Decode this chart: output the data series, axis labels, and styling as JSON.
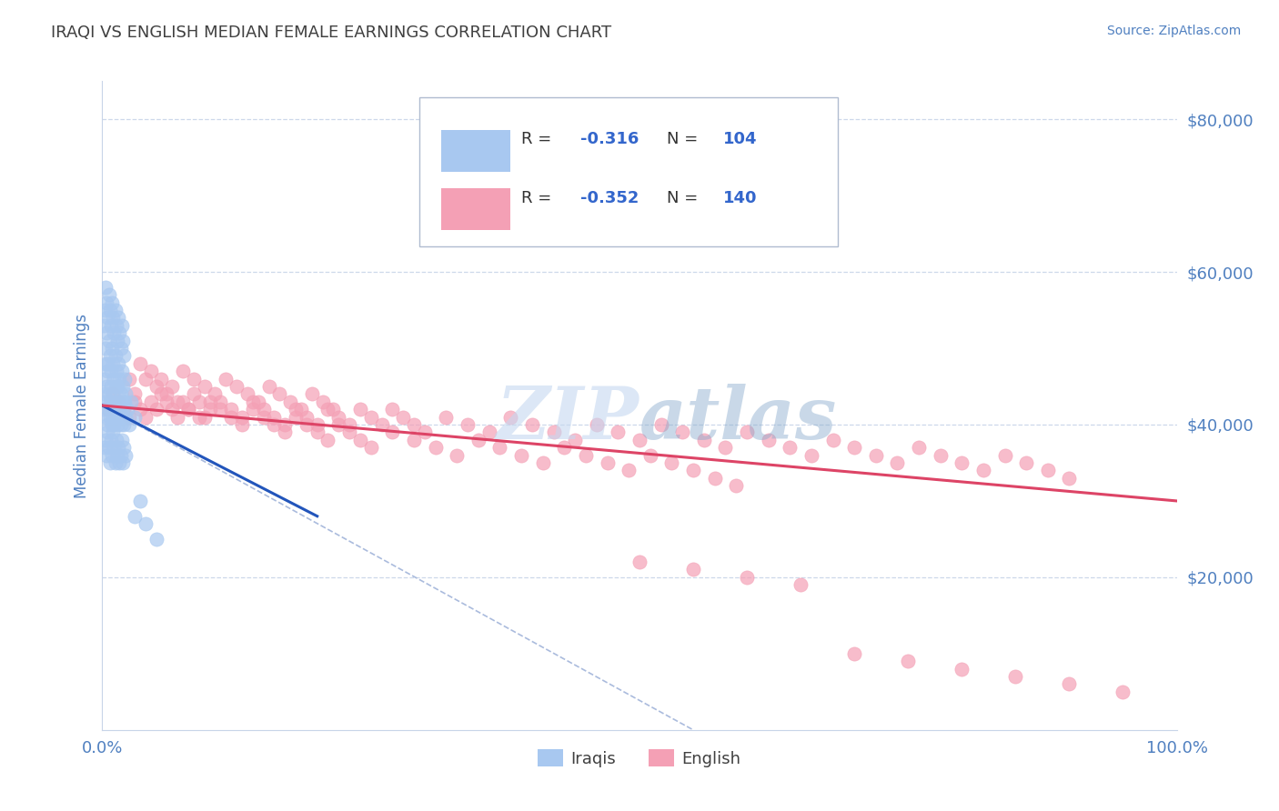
{
  "title": "IRAQI VS ENGLISH MEDIAN FEMALE EARNINGS CORRELATION CHART",
  "source": "Source: ZipAtlas.com",
  "ylabel": "Median Female Earnings",
  "xlim": [
    0,
    1.0
  ],
  "ylim": [
    0,
    85000
  ],
  "yticks": [
    20000,
    40000,
    60000,
    80000
  ],
  "ytick_labels": [
    "$20,000",
    "$40,000",
    "$60,000",
    "$80,000"
  ],
  "xtick_labels": [
    "0.0%",
    "100.0%"
  ],
  "legend_r_iraqi": "-0.316",
  "legend_n_iraqi": "104",
  "legend_r_english": "-0.352",
  "legend_n_english": "140",
  "iraqi_color": "#a8c8f0",
  "english_color": "#f4a0b5",
  "iraqi_line_color": "#2255bb",
  "english_line_color": "#dd4466",
  "diagonal_color": "#aabbdd",
  "watermark_color": "#c5d8f0",
  "background_color": "#ffffff",
  "grid_color": "#c8d4e8",
  "title_color": "#404040",
  "axis_label_color": "#5080c0",
  "label_blue": "#3366cc",
  "iraqi_scatter_x": [
    0.001,
    0.002,
    0.002,
    0.003,
    0.003,
    0.004,
    0.004,
    0.005,
    0.005,
    0.006,
    0.006,
    0.007,
    0.007,
    0.008,
    0.008,
    0.009,
    0.009,
    0.01,
    0.01,
    0.011,
    0.011,
    0.012,
    0.012,
    0.013,
    0.013,
    0.014,
    0.015,
    0.015,
    0.016,
    0.017,
    0.017,
    0.018,
    0.019,
    0.02,
    0.021,
    0.022,
    0.023,
    0.025,
    0.027,
    0.03,
    0.002,
    0.003,
    0.004,
    0.005,
    0.006,
    0.007,
    0.008,
    0.009,
    0.01,
    0.011,
    0.012,
    0.013,
    0.014,
    0.015,
    0.016,
    0.017,
    0.018,
    0.019,
    0.02,
    0.022,
    0.003,
    0.004,
    0.005,
    0.006,
    0.007,
    0.008,
    0.009,
    0.01,
    0.011,
    0.012,
    0.013,
    0.014,
    0.015,
    0.016,
    0.017,
    0.018,
    0.019,
    0.02,
    0.021,
    0.022,
    0.001,
    0.002,
    0.003,
    0.004,
    0.005,
    0.006,
    0.007,
    0.008,
    0.009,
    0.01,
    0.011,
    0.012,
    0.013,
    0.014,
    0.015,
    0.016,
    0.017,
    0.018,
    0.019,
    0.02,
    0.03,
    0.035,
    0.04,
    0.05
  ],
  "iraqi_scatter_y": [
    42000,
    44000,
    46000,
    43000,
    48000,
    41000,
    45000,
    40000,
    47000,
    42000,
    44000,
    43000,
    41000,
    45000,
    42000,
    40000,
    43000,
    41000,
    44000,
    42000,
    40000,
    43000,
    41000,
    45000,
    42000,
    40000,
    43000,
    41000,
    42000,
    40000,
    43000,
    41000,
    42000,
    40000,
    43000,
    41000,
    42000,
    40000,
    43000,
    41000,
    37000,
    38000,
    36000,
    39000,
    37000,
    35000,
    38000,
    36000,
    39000,
    37000,
    35000,
    38000,
    36000,
    37000,
    35000,
    36000,
    38000,
    35000,
    37000,
    36000,
    50000,
    52000,
    48000,
    51000,
    49000,
    47000,
    50000,
    48000,
    46000,
    49000,
    47000,
    45000,
    48000,
    46000,
    44000,
    47000,
    45000,
    43000,
    46000,
    44000,
    53000,
    55000,
    58000,
    56000,
    54000,
    57000,
    55000,
    53000,
    56000,
    54000,
    52000,
    55000,
    53000,
    51000,
    54000,
    52000,
    50000,
    53000,
    51000,
    49000,
    28000,
    30000,
    27000,
    25000
  ],
  "english_scatter_x": [
    0.005,
    0.01,
    0.015,
    0.02,
    0.025,
    0.03,
    0.035,
    0.04,
    0.045,
    0.05,
    0.055,
    0.06,
    0.065,
    0.07,
    0.075,
    0.08,
    0.085,
    0.09,
    0.095,
    0.1,
    0.11,
    0.12,
    0.13,
    0.14,
    0.15,
    0.16,
    0.17,
    0.18,
    0.19,
    0.2,
    0.21,
    0.22,
    0.23,
    0.24,
    0.25,
    0.26,
    0.27,
    0.28,
    0.29,
    0.3,
    0.32,
    0.34,
    0.36,
    0.38,
    0.4,
    0.42,
    0.44,
    0.46,
    0.48,
    0.5,
    0.52,
    0.54,
    0.56,
    0.58,
    0.6,
    0.62,
    0.64,
    0.66,
    0.68,
    0.7,
    0.72,
    0.74,
    0.76,
    0.78,
    0.8,
    0.82,
    0.84,
    0.86,
    0.88,
    0.9,
    0.03,
    0.04,
    0.05,
    0.06,
    0.07,
    0.08,
    0.09,
    0.1,
    0.11,
    0.12,
    0.13,
    0.14,
    0.15,
    0.16,
    0.17,
    0.18,
    0.19,
    0.2,
    0.21,
    0.22,
    0.23,
    0.24,
    0.25,
    0.27,
    0.29,
    0.31,
    0.33,
    0.35,
    0.37,
    0.39,
    0.41,
    0.43,
    0.45,
    0.47,
    0.49,
    0.51,
    0.53,
    0.55,
    0.57,
    0.59,
    0.025,
    0.035,
    0.045,
    0.055,
    0.065,
    0.075,
    0.085,
    0.095,
    0.105,
    0.115,
    0.125,
    0.135,
    0.145,
    0.155,
    0.165,
    0.175,
    0.185,
    0.195,
    0.205,
    0.215,
    0.5,
    0.55,
    0.6,
    0.65,
    0.7,
    0.75,
    0.8,
    0.85,
    0.9,
    0.95
  ],
  "english_scatter_y": [
    42000,
    44000,
    43000,
    42000,
    41000,
    43000,
    42000,
    41000,
    43000,
    42000,
    44000,
    43000,
    42000,
    41000,
    43000,
    42000,
    44000,
    43000,
    41000,
    42000,
    43000,
    42000,
    41000,
    43000,
    42000,
    41000,
    40000,
    42000,
    41000,
    40000,
    42000,
    41000,
    40000,
    42000,
    41000,
    40000,
    42000,
    41000,
    40000,
    39000,
    41000,
    40000,
    39000,
    41000,
    40000,
    39000,
    38000,
    40000,
    39000,
    38000,
    40000,
    39000,
    38000,
    37000,
    39000,
    38000,
    37000,
    36000,
    38000,
    37000,
    36000,
    35000,
    37000,
    36000,
    35000,
    34000,
    36000,
    35000,
    34000,
    33000,
    44000,
    46000,
    45000,
    44000,
    43000,
    42000,
    41000,
    43000,
    42000,
    41000,
    40000,
    42000,
    41000,
    40000,
    39000,
    41000,
    40000,
    39000,
    38000,
    40000,
    39000,
    38000,
    37000,
    39000,
    38000,
    37000,
    36000,
    38000,
    37000,
    36000,
    35000,
    37000,
    36000,
    35000,
    34000,
    36000,
    35000,
    34000,
    33000,
    32000,
    46000,
    48000,
    47000,
    46000,
    45000,
    47000,
    46000,
    45000,
    44000,
    46000,
    45000,
    44000,
    43000,
    45000,
    44000,
    43000,
    42000,
    44000,
    43000,
    42000,
    22000,
    21000,
    20000,
    19000,
    10000,
    9000,
    8000,
    7000,
    6000,
    5000
  ]
}
